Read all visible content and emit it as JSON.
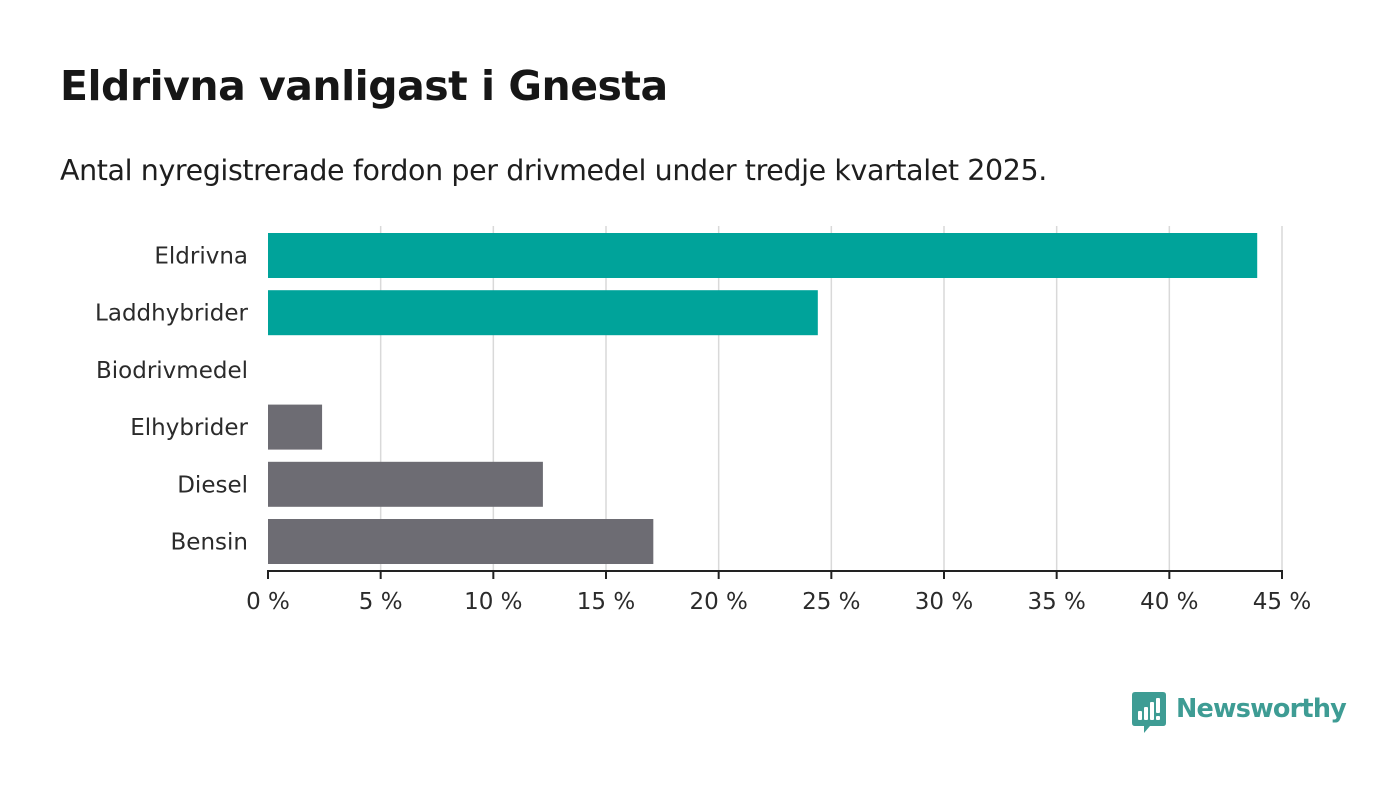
{
  "title": "Eldrivna vanligast i Gnesta",
  "subtitle": "Antal nyregistrerade fordon per drivmedel under tredje kvartalet 2025.",
  "brand": {
    "name": "Newsworthy",
    "color": "#3e9c94"
  },
  "colors": {
    "highlight": "#00a39a",
    "neutral": "#6d6c73",
    "grid": "#d9d9d9",
    "axis": "#222222"
  },
  "chart_data": {
    "type": "bar",
    "orientation": "horizontal",
    "categories": [
      "Eldrivna",
      "Laddhybrider",
      "Biodrivmedel",
      "Elhybrider",
      "Diesel",
      "Bensin"
    ],
    "values": [
      43.9,
      24.4,
      0,
      2.4,
      12.2,
      17.1
    ],
    "bar_colors": [
      "#00a39a",
      "#00a39a",
      "#6d6c73",
      "#6d6c73",
      "#6d6c73",
      "#6d6c73"
    ],
    "xlim": [
      0,
      45
    ],
    "xticks": [
      0,
      5,
      10,
      15,
      20,
      25,
      30,
      35,
      40,
      45
    ],
    "tick_labels": [
      "0 %",
      "5 %",
      "10 %",
      "15 %",
      "20 %",
      "25 %",
      "30 %",
      "35 %",
      "40 %",
      "45 %"
    ],
    "xlabel": "",
    "ylabel": "",
    "grid": true
  }
}
